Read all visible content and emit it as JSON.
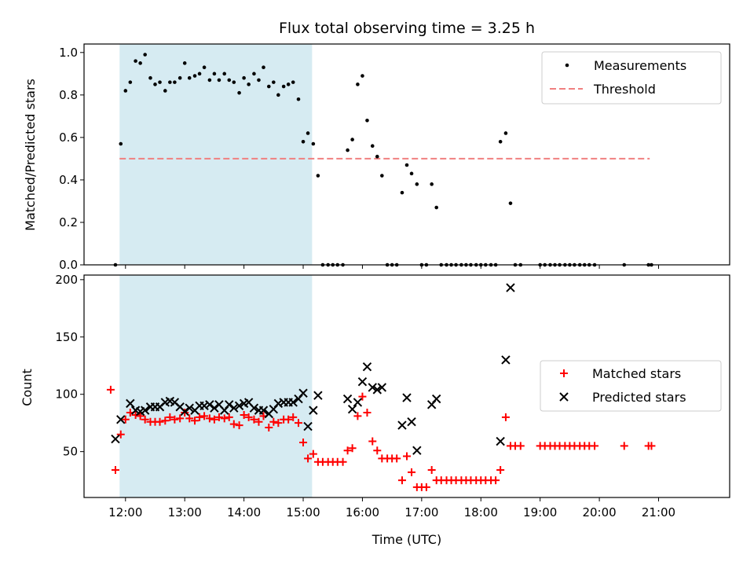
{
  "figure": {
    "title": "Flux total observing time = 3.25 h",
    "xlabel": "Time (UTC)"
  },
  "colors": {
    "shade": "#add8e6",
    "measurement": "#000000",
    "threshold": "#f08080",
    "matched": "#ff0000",
    "predicted": "#000000"
  },
  "chart_data": [
    {
      "type": "scatter",
      "panel": "top",
      "ylabel": "Matched/Predicted stars",
      "xlim": [
        11.3,
        22.2
      ],
      "ylim": [
        0,
        1.04
      ],
      "yticks": [
        0.0,
        0.2,
        0.4,
        0.6,
        0.8,
        1.0
      ],
      "ytick_labels": [
        "0.0",
        "0.2",
        "0.4",
        "0.6",
        "0.8",
        "1.0"
      ],
      "xticks": [
        12,
        13,
        14,
        15,
        16,
        17,
        18,
        19,
        20,
        21
      ],
      "shaded_interval": [
        11.9,
        15.15
      ],
      "legend": {
        "position": "upper-right",
        "entries": [
          "Measurements",
          "Threshold"
        ]
      },
      "threshold": {
        "name": "Threshold",
        "value": 0.5,
        "x_range": [
          11.9,
          20.85
        ]
      },
      "measurements": {
        "name": "Measurements",
        "x": [
          11.83,
          11.92,
          12.0,
          12.08,
          12.17,
          12.25,
          12.33,
          12.42,
          12.5,
          12.58,
          12.67,
          12.75,
          12.83,
          12.92,
          13.0,
          13.08,
          13.17,
          13.25,
          13.33,
          13.42,
          13.5,
          13.58,
          13.67,
          13.75,
          13.83,
          13.92,
          14.0,
          14.08,
          14.17,
          14.25,
          14.33,
          14.42,
          14.5,
          14.58,
          14.67,
          14.75,
          14.83,
          14.92,
          15.0,
          15.08,
          15.17,
          15.25,
          15.33,
          15.42,
          15.5,
          15.58,
          15.67,
          15.75,
          15.83,
          15.92,
          16.0,
          16.08,
          16.17,
          16.25,
          16.33,
          16.42,
          16.5,
          16.58,
          16.67,
          16.75,
          16.83,
          16.92,
          17.0,
          17.08,
          17.17,
          17.25,
          17.33,
          17.42,
          17.5,
          17.58,
          17.67,
          17.75,
          17.83,
          17.92,
          18.0,
          18.08,
          18.17,
          18.25,
          18.33,
          18.42,
          18.5,
          18.58,
          18.67,
          19.0,
          19.08,
          19.17,
          19.25,
          19.33,
          19.42,
          19.5,
          19.58,
          19.67,
          19.75,
          19.83,
          19.92,
          20.42,
          20.83,
          20.88
        ],
        "y": [
          0.0,
          0.57,
          0.82,
          0.86,
          0.96,
          0.95,
          0.99,
          0.88,
          0.85,
          0.86,
          0.82,
          0.86,
          0.86,
          0.88,
          0.95,
          0.88,
          0.89,
          0.9,
          0.93,
          0.87,
          0.9,
          0.87,
          0.9,
          0.87,
          0.86,
          0.81,
          0.88,
          0.85,
          0.9,
          0.87,
          0.93,
          0.84,
          0.86,
          0.8,
          0.84,
          0.85,
          0.86,
          0.78,
          0.58,
          0.62,
          0.57,
          0.42,
          0.0,
          0.0,
          0.0,
          0.0,
          0.0,
          0.54,
          0.59,
          0.85,
          0.89,
          0.68,
          0.56,
          0.51,
          0.42,
          0.0,
          0.0,
          0.0,
          0.34,
          0.47,
          0.43,
          0.38,
          0.0,
          0.0,
          0.38,
          0.27,
          0.0,
          0.0,
          0.0,
          0.0,
          0.0,
          0.0,
          0.0,
          0.0,
          0.0,
          0.0,
          0.0,
          0.0,
          0.58,
          0.62,
          0.29,
          0.0,
          0.0,
          0.0,
          0.0,
          0.0,
          0.0,
          0.0,
          0.0,
          0.0,
          0.0,
          0.0,
          0.0,
          0.0,
          0.0,
          0.0,
          0.0,
          0.0
        ]
      }
    },
    {
      "type": "scatter",
      "panel": "bottom",
      "ylabel": "Count",
      "xlabel": "Time (UTC)",
      "xlim": [
        11.3,
        22.2
      ],
      "ylim": [
        10,
        204
      ],
      "yticks": [
        50,
        100,
        150,
        200
      ],
      "ytick_labels": [
        "50",
        "100",
        "150",
        "200"
      ],
      "xticks": [
        12,
        13,
        14,
        15,
        16,
        17,
        18,
        19,
        20,
        21
      ],
      "xtick_labels": [
        "12:00",
        "13:00",
        "14:00",
        "15:00",
        "16:00",
        "17:00",
        "18:00",
        "19:00",
        "20:00",
        "21:00"
      ],
      "shaded_interval": [
        11.9,
        15.15
      ],
      "legend": {
        "position": "center-right",
        "entries": [
          "Matched stars",
          "Predicted stars"
        ]
      },
      "matched": {
        "name": "Matched stars",
        "x": [
          11.75,
          11.83,
          11.92,
          12.0,
          12.08,
          12.17,
          12.25,
          12.33,
          12.42,
          12.5,
          12.58,
          12.67,
          12.75,
          12.83,
          12.92,
          13.0,
          13.08,
          13.17,
          13.25,
          13.33,
          13.42,
          13.5,
          13.58,
          13.67,
          13.75,
          13.83,
          13.92,
          14.0,
          14.08,
          14.17,
          14.25,
          14.33,
          14.42,
          14.5,
          14.58,
          14.67,
          14.75,
          14.83,
          14.92,
          15.0,
          15.08,
          15.17,
          15.25,
          15.33,
          15.42,
          15.5,
          15.58,
          15.67,
          15.75,
          15.83,
          15.92,
          16.0,
          16.08,
          16.17,
          16.25,
          16.33,
          16.42,
          16.5,
          16.58,
          16.67,
          16.75,
          16.83,
          16.92,
          17.0,
          17.08,
          17.17,
          17.25,
          17.33,
          17.42,
          17.5,
          17.58,
          17.67,
          17.75,
          17.83,
          17.92,
          18.0,
          18.08,
          18.17,
          18.25,
          18.33,
          18.42,
          18.5,
          18.58,
          18.67,
          19.0,
          19.08,
          19.17,
          19.25,
          19.33,
          19.42,
          19.5,
          19.58,
          19.67,
          19.75,
          19.83,
          19.92,
          20.42,
          20.83,
          20.88
        ],
        "y": [
          104,
          34,
          65,
          78,
          84,
          82,
          81,
          78,
          76,
          76,
          76,
          77,
          80,
          78,
          79,
          84,
          79,
          77,
          80,
          81,
          79,
          78,
          80,
          79,
          80,
          74,
          73,
          82,
          80,
          78,
          76,
          81,
          71,
          76,
          75,
          78,
          78,
          80,
          75,
          58,
          44,
          48,
          41,
          41,
          41,
          41,
          41,
          41,
          51,
          53,
          81,
          98,
          84,
          59,
          51,
          44,
          44,
          44,
          44,
          25,
          46,
          32,
          19,
          19,
          19,
          34,
          25,
          25,
          25,
          25,
          25,
          25,
          25,
          25,
          25,
          25,
          25,
          25,
          25,
          34,
          80,
          55,
          55,
          55,
          55,
          55,
          55,
          55,
          55,
          55,
          55,
          55,
          55,
          55,
          55,
          55,
          55,
          55,
          55
        ]
      },
      "predicted": {
        "name": "Predicted stars",
        "x": [
          11.83,
          11.92,
          12.08,
          12.17,
          12.25,
          12.33,
          12.42,
          12.5,
          12.58,
          12.67,
          12.75,
          12.83,
          12.92,
          13.0,
          13.08,
          13.17,
          13.25,
          13.33,
          13.42,
          13.5,
          13.58,
          13.67,
          13.75,
          13.83,
          13.92,
          14.0,
          14.08,
          14.17,
          14.25,
          14.33,
          14.42,
          14.5,
          14.58,
          14.67,
          14.75,
          14.83,
          14.92,
          15.0,
          15.08,
          15.17,
          15.25,
          15.75,
          15.83,
          15.92,
          16.0,
          16.08,
          16.17,
          16.25,
          16.33,
          16.67,
          16.75,
          16.83,
          16.92,
          17.17,
          17.25,
          18.33,
          18.42,
          18.5
        ],
        "y": [
          61,
          78,
          92,
          86,
          85,
          86,
          89,
          89,
          89,
          93,
          94,
          93,
          89,
          85,
          88,
          86,
          90,
          90,
          91,
          88,
          91,
          86,
          91,
          88,
          90,
          92,
          93,
          88,
          86,
          86,
          83,
          87,
          92,
          93,
          93,
          93,
          96,
          101,
          72,
          86,
          99,
          96,
          87,
          93,
          111,
          124,
          106,
          104,
          106,
          73,
          97,
          76,
          51,
          91,
          96,
          59,
          130,
          193
        ]
      }
    }
  ]
}
